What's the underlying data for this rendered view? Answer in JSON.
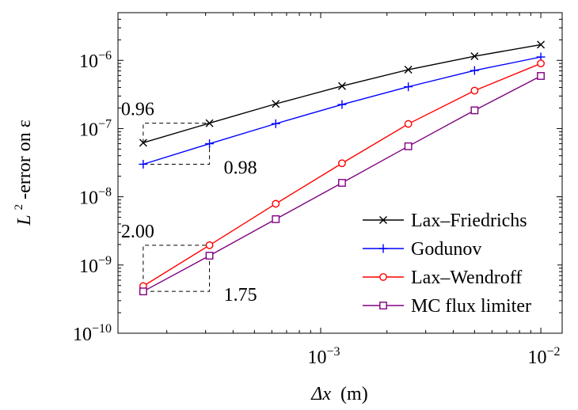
{
  "chart_data": {
    "type": "line",
    "xscale": "log",
    "yscale": "log",
    "xlim": [
      0.00012,
      0.0125
    ],
    "ylim": [
      1e-10,
      5e-06
    ],
    "xlabel_sym": "Δx",
    "xlabel_unit": "(m)",
    "ylabel_pre": "L",
    "ylabel_sup": "2",
    "ylabel_post": "-error on ε",
    "x_ticks": [
      {
        "value": 0.001,
        "base": "10",
        "exp": "−3"
      },
      {
        "value": 0.01,
        "base": "10",
        "exp": "−2"
      }
    ],
    "y_ticks": [
      {
        "value": 1e-10,
        "base": "10",
        "exp": "−10"
      },
      {
        "value": 1e-09,
        "base": "10",
        "exp": "−9"
      },
      {
        "value": 1e-08,
        "base": "10",
        "exp": "−8"
      },
      {
        "value": 1e-07,
        "base": "10",
        "exp": "−7"
      },
      {
        "value": 1e-06,
        "base": "10",
        "exp": "−6"
      }
    ],
    "x": [
      0.00015625,
      0.0003125,
      0.000625,
      0.00125,
      0.0025,
      0.005,
      0.01
    ],
    "series": [
      {
        "name": "Lax–Friedrichs",
        "color": "#000000",
        "marker": "x",
        "values": [
          6.2e-08,
          1.2e-07,
          2.3e-07,
          4.2e-07,
          7.3e-07,
          1.15e-06,
          1.7e-06
        ]
      },
      {
        "name": "Godunov",
        "color": "#0000ff",
        "marker": "plus",
        "values": [
          3e-08,
          6e-08,
          1.18e-07,
          2.25e-07,
          4.1e-07,
          7.1e-07,
          1.12e-06
        ]
      },
      {
        "name": "Lax–Wendroff",
        "color": "#ff0000",
        "marker": "circle",
        "values": [
          4.9e-10,
          1.95e-09,
          7.9e-09,
          3.1e-08,
          1.17e-07,
          3.6e-07,
          9e-07
        ]
      },
      {
        "name": "MC flux limiter",
        "color": "#800080",
        "marker": "square",
        "values": [
          4.1e-10,
          1.37e-09,
          4.7e-09,
          1.6e-08,
          5.5e-08,
          1.85e-07,
          5.9e-07
        ]
      }
    ],
    "slope_triangles": [
      {
        "label": "0.96",
        "x0": 0.00015625,
        "x1": 0.0003125,
        "y0": 6.2e-08,
        "y1": 1.2e-07,
        "corner": "top-left",
        "label_pos": "above-left"
      },
      {
        "label": "0.98",
        "x0": 0.00015625,
        "x1": 0.0003125,
        "y0": 3e-08,
        "y1": 6e-08,
        "corner": "bottom-right",
        "label_pos": "below-right"
      },
      {
        "label": "2.00",
        "x0": 0.00015625,
        "x1": 0.0003125,
        "y0": 4.9e-10,
        "y1": 1.95e-09,
        "corner": "top-left",
        "label_pos": "above-left"
      },
      {
        "label": "1.75",
        "x0": 0.00015625,
        "x1": 0.0003125,
        "y0": 4.1e-10,
        "y1": 1.37e-09,
        "corner": "bottom-right",
        "label_pos": "below-right"
      }
    ],
    "legend_position": "bottom-right",
    "grid": false
  }
}
